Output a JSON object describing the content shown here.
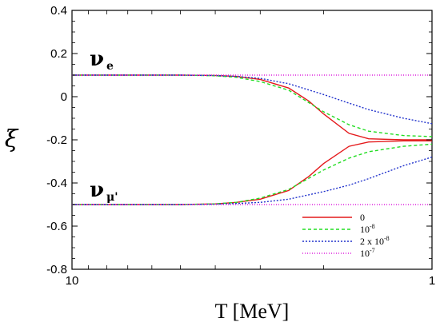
{
  "chart_data": {
    "type": "line",
    "title": "",
    "xlabel": "T [MeV]",
    "ylabel": "ξ",
    "x_scale": "log",
    "x_reversed": true,
    "xlim": [
      10,
      1
    ],
    "ylim": [
      -0.8,
      0.4
    ],
    "x_ticks": [
      "10",
      "1"
    ],
    "y_ticks": [
      "0.4",
      "0.2",
      "0",
      "-0.2",
      "-0.4",
      "-0.6",
      "-0.8"
    ],
    "grid": false,
    "legend_position": "bottom-right",
    "annotations": [
      {
        "main": "ν",
        "sub": "e"
      },
      {
        "main": "ν",
        "sub": "μ'"
      }
    ],
    "series": [
      {
        "name": "0",
        "legend_base": "0",
        "legend_exp": "",
        "color": "#e41a1c",
        "dash": "solid",
        "curves": [
          {
            "x": [
              10,
              5,
              4,
              3.5,
              3,
              2.5,
              2.2,
              2,
              1.7,
              1.5,
              1.2,
              1
            ],
            "y": [
              0.1,
              0.1,
              0.098,
              0.094,
              0.08,
              0.04,
              -0.02,
              -0.08,
              -0.17,
              -0.195,
              -0.2,
              -0.2
            ]
          },
          {
            "x": [
              10,
              5,
              4,
              3.5,
              3,
              2.5,
              2.2,
              2,
              1.7,
              1.5,
              1.2,
              1
            ],
            "y": [
              -0.5,
              -0.5,
              -0.497,
              -0.49,
              -0.475,
              -0.435,
              -0.37,
              -0.31,
              -0.23,
              -0.21,
              -0.205,
              -0.205
            ]
          }
        ]
      },
      {
        "name": "10-8",
        "legend_base": "10",
        "legend_exp": "-8",
        "color": "#22dd22",
        "dash": "4,3",
        "curves": [
          {
            "x": [
              10,
              5,
              4,
              3.5,
              3,
              2.5,
              2,
              1.7,
              1.5,
              1.2,
              1
            ],
            "y": [
              0.1,
              0.1,
              0.097,
              0.09,
              0.07,
              0.03,
              -0.07,
              -0.13,
              -0.16,
              -0.18,
              -0.185
            ]
          },
          {
            "x": [
              10,
              5,
              4,
              3.5,
              3,
              2.5,
              2,
              1.7,
              1.5,
              1.2,
              1
            ],
            "y": [
              -0.5,
              -0.5,
              -0.497,
              -0.49,
              -0.47,
              -0.43,
              -0.34,
              -0.285,
              -0.255,
              -0.23,
              -0.22
            ]
          }
        ]
      },
      {
        "name": "2 x 10-8",
        "legend_base": "2 x 10",
        "legend_exp": "-8",
        "color": "#2233cc",
        "dash": "2,2",
        "curves": [
          {
            "x": [
              10,
              5,
              4,
              3.5,
              3,
              2.5,
              2,
              1.7,
              1.5,
              1.2,
              1
            ],
            "y": [
              0.1,
              0.1,
              0.098,
              0.094,
              0.085,
              0.06,
              0.01,
              -0.03,
              -0.06,
              -0.1,
              -0.125
            ]
          },
          {
            "x": [
              10,
              5,
              4,
              3.5,
              3,
              2.5,
              2,
              1.7,
              1.5,
              1.2,
              1
            ],
            "y": [
              -0.5,
              -0.5,
              -0.498,
              -0.495,
              -0.49,
              -0.475,
              -0.44,
              -0.41,
              -0.38,
              -0.32,
              -0.28
            ]
          }
        ]
      },
      {
        "name": "10-7",
        "legend_base": "10",
        "legend_exp": "-7",
        "color": "#dd22dd",
        "dash": "1,2",
        "curves": [
          {
            "x": [
              10,
              1
            ],
            "y": [
              0.1,
              0.1
            ]
          },
          {
            "x": [
              10,
              1
            ],
            "y": [
              -0.5,
              -0.5
            ]
          }
        ]
      }
    ]
  }
}
